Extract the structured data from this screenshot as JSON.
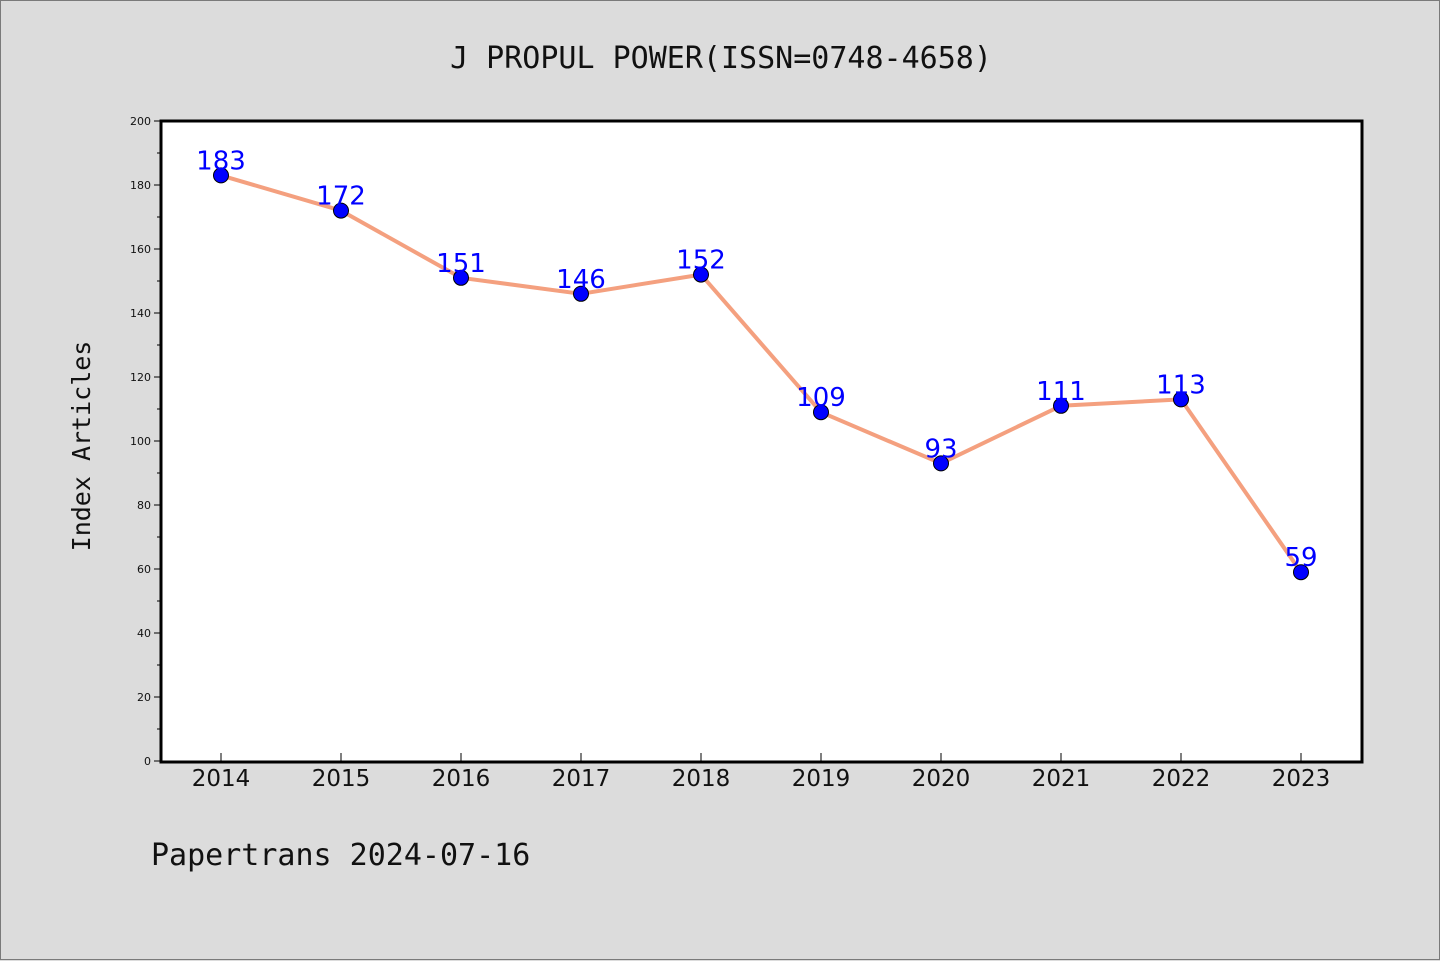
{
  "title": "J PROPUL POWER(ISSN=0748-4658)",
  "footer": "Papertrans 2024-07-16",
  "colors": {
    "background": "#dcdcdc",
    "plot_background": "#ffffff",
    "line": "#f4a07f",
    "marker": "#0000ff",
    "data_label": "#0000ff"
  },
  "chart_data": {
    "type": "line",
    "title": "J PROPUL POWER(ISSN=0748-4658)",
    "xlabel": "",
    "ylabel": "Index Articles",
    "categories": [
      "2014",
      "2015",
      "2016",
      "2017",
      "2018",
      "2019",
      "2020",
      "2021",
      "2022",
      "2023"
    ],
    "series": [
      {
        "values": [
          183,
          172,
          151,
          146,
          152,
          109,
          93,
          111,
          113,
          59
        ]
      }
    ],
    "ylim": [
      0,
      200
    ],
    "yticks": [
      0,
      20,
      40,
      60,
      80,
      100,
      120,
      140,
      160,
      180,
      200
    ],
    "grid": false,
    "legend": "none",
    "data_labels": true
  }
}
